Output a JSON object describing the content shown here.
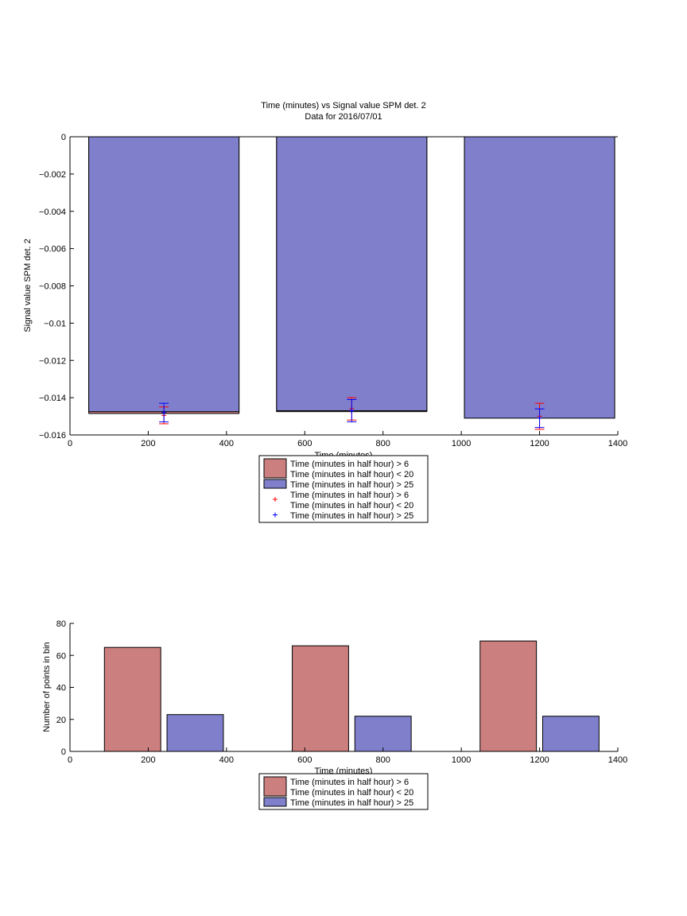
{
  "charts": [
    {
      "type": "bar",
      "title": "Time (minutes) vs Signal value SPM det. 2",
      "subtitle": "Data for 2016/07/01",
      "xlabel": "Time (minutes)",
      "ylabel": "Signal value SPM det. 2",
      "xlim": [
        0,
        1400
      ],
      "ylim": [
        -0.016,
        0
      ],
      "xticks": [
        "0",
        "200",
        "400",
        "600",
        "800",
        "1000",
        "1200",
        "1400"
      ],
      "yticks": [
        "0",
        "−0.002",
        "−0.004",
        "−0.006",
        "−0.008",
        "−0.01",
        "−0.012",
        "−0.014",
        "−0.016"
      ],
      "bar_width": 384,
      "series": [
        {
          "name": "Time (minutes in half hour) > 6\nTime (minutes in half hour) < 20",
          "color": "#cc7f7f",
          "x": [
            240,
            720,
            1200
          ],
          "values": [
            -0.01485,
            -0.01475,
            -0.01505
          ]
        },
        {
          "name": "Time (minutes in half hour) > 25",
          "color": "#7f7fcc",
          "x": [
            240,
            720,
            1200
          ],
          "values": [
            -0.01475,
            -0.0147,
            -0.0151
          ]
        }
      ],
      "errorbars": [
        {
          "color": "#ff0000",
          "x": [
            240,
            720,
            1200
          ],
          "y": [
            -0.01495,
            -0.0146,
            -0.015
          ],
          "lower": [
            -0.0154,
            -0.0152,
            -0.0157
          ],
          "upper": [
            -0.0145,
            -0.014,
            -0.0143
          ]
        },
        {
          "color": "#0000ff",
          "x": [
            240,
            720,
            1200
          ],
          "y": [
            -0.0148,
            -0.0147,
            -0.0151
          ],
          "lower": [
            -0.0153,
            -0.0153,
            -0.0156
          ],
          "upper": [
            -0.0143,
            -0.0141,
            -0.0146
          ]
        }
      ],
      "legend": {
        "position": "below",
        "entries": [
          {
            "kind": "patch",
            "color": "#cc7f7f",
            "lines": [
              "Time (minutes in half hour) > 6",
              "Time (minutes in half hour) < 20"
            ]
          },
          {
            "kind": "patch",
            "color": "#7f7fcc",
            "lines": [
              "Time (minutes in half hour) > 25"
            ]
          },
          {
            "kind": "marker",
            "color": "#ff0000",
            "lines": [
              "Time (minutes in half hour) > 6",
              "Time (minutes in half hour) < 20"
            ]
          },
          {
            "kind": "marker",
            "color": "#0000ff",
            "lines": [
              "Time (minutes in half hour) > 25"
            ]
          }
        ]
      }
    },
    {
      "type": "bar",
      "title": "",
      "xlabel": "Time (minutes)",
      "ylabel": "Number of points in bin",
      "xlim": [
        0,
        1400
      ],
      "ylim": [
        0,
        80
      ],
      "xticks": [
        "0",
        "200",
        "400",
        "600",
        "800",
        "1000",
        "1200",
        "1400"
      ],
      "yticks": [
        "0",
        "20",
        "40",
        "60",
        "80"
      ],
      "bar_width": 144,
      "series": [
        {
          "name": "Time (minutes in half hour) > 6\nTime (minutes in half hour) < 20",
          "color": "#cc7f7f",
          "x": [
            160,
            640,
            1120
          ],
          "values": [
            65,
            66,
            69
          ]
        },
        {
          "name": "Time (minutes in half hour) > 25",
          "color": "#7f7fcc",
          "x": [
            320,
            800,
            1280
          ],
          "values": [
            23,
            22,
            22
          ]
        }
      ],
      "legend": {
        "position": "below",
        "entries": [
          {
            "kind": "patch",
            "color": "#cc7f7f",
            "lines": [
              "Time (minutes in half hour) > 6",
              "Time (minutes in half hour) < 20"
            ]
          },
          {
            "kind": "patch",
            "color": "#7f7fcc",
            "lines": [
              "Time (minutes in half hour) > 25"
            ]
          }
        ]
      }
    }
  ]
}
